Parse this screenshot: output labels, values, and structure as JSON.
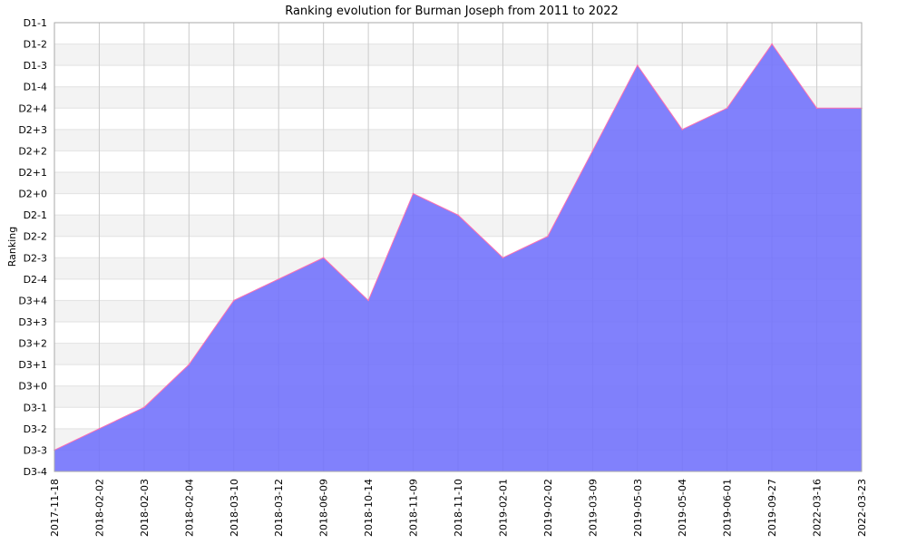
{
  "chart_data": {
    "type": "area",
    "title": "Ranking evolution for Burman Joseph from 2011 to 2022",
    "xlabel": "",
    "ylabel": "Ranking",
    "y_categories": [
      "D1-1",
      "D1-2",
      "D1-3",
      "D1-4",
      "D2+4",
      "D2+3",
      "D2+2",
      "D2+1",
      "D2+0",
      "D2-1",
      "D2-2",
      "D2-3",
      "D2-4",
      "D3+4",
      "D3+3",
      "D3+2",
      "D3+1",
      "D3+0",
      "D3-1",
      "D3-2",
      "D3-3",
      "D3-4"
    ],
    "x": [
      "2017-11-18",
      "2018-02-02",
      "2018-02-03",
      "2018-02-04",
      "2018-03-10",
      "2018-03-12",
      "2018-06-09",
      "2018-10-14",
      "2018-11-09",
      "2018-11-10",
      "2019-02-01",
      "2019-02-02",
      "2019-03-09",
      "2019-05-03",
      "2019-05-04",
      "2019-06-01",
      "2019-09-27",
      "2022-03-16",
      "2022-03-23"
    ],
    "series": [
      {
        "name": "",
        "values": [
          "D3-3",
          "D3-2",
          "D3-1",
          "D3+1",
          "D3+4",
          "D2-4",
          "D2-3",
          "D3+4",
          "D2+0",
          "D2-1",
          "D2-3",
          "D2-2",
          "D2+2",
          "D1-3",
          "D2+3",
          "D2+4",
          "D1-2",
          "D2+4",
          "D2+4"
        ]
      }
    ],
    "colors": {
      "fill": "#6f6ffc",
      "line": "#ff6fb0",
      "band_light": "#f3f3f3",
      "band_white": "#ffffff",
      "grid": "#cccccc",
      "axis": "#aaaaaa"
    },
    "grid": true,
    "legend": "none"
  }
}
